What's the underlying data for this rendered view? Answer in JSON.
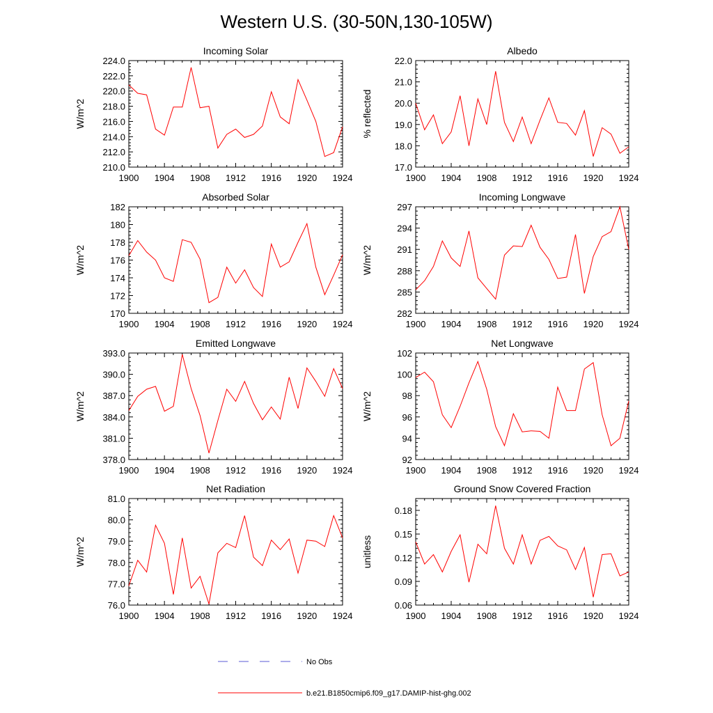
{
  "title": "Western U.S. (30-50N,130-105W)",
  "legend": [
    {
      "label": "No Obs",
      "color": "#5a5ad6",
      "dash": true
    },
    {
      "label": "b.e21.B1850cmip6.f09_g17.DAMIP-hist-ghg.002",
      "color": "#ff0000",
      "dash": false
    }
  ],
  "chart_data": [
    {
      "type": "line",
      "title": "Incoming Solar",
      "ylabel": "W/m^2",
      "xlim": [
        1900,
        1924
      ],
      "ylim": [
        210,
        224
      ],
      "yticks": [
        210,
        212,
        214,
        216,
        218,
        220,
        222,
        224
      ],
      "ytick_labels": [
        "210.0",
        "212.0",
        "214.0",
        "216.0",
        "218.0",
        "220.0",
        "222.0",
        "224.0"
      ],
      "xticks": [
        1900,
        1904,
        1908,
        1912,
        1916,
        1920,
        1924
      ],
      "xtick_labels": [
        "1900",
        "1904",
        "1908",
        "1912",
        "1916",
        "1920",
        "1924"
      ],
      "series": [
        {
          "color": "#ff0000",
          "x": [
            1900,
            1901,
            1902,
            1903,
            1904,
            1905,
            1906,
            1907,
            1908,
            1909,
            1910,
            1911,
            1912,
            1913,
            1914,
            1915,
            1916,
            1917,
            1918,
            1919,
            1920,
            1921,
            1922,
            1923,
            1924
          ],
          "y": [
            220.8,
            219.7,
            219.5,
            215.0,
            214.2,
            217.9,
            217.9,
            223.1,
            217.8,
            218.0,
            212.5,
            214.3,
            215.0,
            213.9,
            214.3,
            215.4,
            219.9,
            216.6,
            215.7,
            221.5,
            218.8,
            216.0,
            211.4,
            211.9,
            215.3
          ]
        }
      ]
    },
    {
      "type": "line",
      "title": "Albedo",
      "ylabel": "% reflected",
      "xlim": [
        1900,
        1924
      ],
      "ylim": [
        17,
        22
      ],
      "yticks": [
        17,
        18,
        19,
        20,
        21,
        22
      ],
      "ytick_labels": [
        "17.0",
        "18.0",
        "19.0",
        "20.0",
        "21.0",
        "22.0"
      ],
      "xticks": [
        1900,
        1904,
        1908,
        1912,
        1916,
        1920,
        1924
      ],
      "xtick_labels": [
        "1900",
        "1904",
        "1908",
        "1912",
        "1916",
        "1920",
        "1924"
      ],
      "series": [
        {
          "color": "#ff0000",
          "x": [
            1900,
            1901,
            1902,
            1903,
            1904,
            1905,
            1906,
            1907,
            1908,
            1909,
            1910,
            1911,
            1912,
            1913,
            1914,
            1915,
            1916,
            1917,
            1918,
            1919,
            1920,
            1921,
            1922,
            1923,
            1924
          ],
          "y": [
            20.0,
            18.75,
            19.45,
            18.1,
            18.65,
            20.35,
            18.0,
            20.2,
            19.0,
            21.5,
            19.1,
            18.2,
            19.35,
            18.1,
            19.2,
            20.25,
            19.1,
            19.05,
            18.5,
            19.65,
            17.5,
            18.85,
            18.55,
            17.65,
            17.95
          ]
        }
      ]
    },
    {
      "type": "line",
      "title": "Absorbed Solar",
      "ylabel": "W/m^2",
      "xlim": [
        1900,
        1924
      ],
      "ylim": [
        170,
        182
      ],
      "yticks": [
        170,
        172,
        174,
        176,
        178,
        180,
        182
      ],
      "ytick_labels": [
        "170",
        "172",
        "174",
        "176",
        "178",
        "180",
        "182"
      ],
      "xticks": [
        1900,
        1904,
        1908,
        1912,
        1916,
        1920,
        1924
      ],
      "xtick_labels": [
        "1900",
        "1904",
        "1908",
        "1912",
        "1916",
        "1920",
        "1924"
      ],
      "series": [
        {
          "color": "#ff0000",
          "x": [
            1900,
            1901,
            1902,
            1903,
            1904,
            1905,
            1906,
            1907,
            1908,
            1909,
            1910,
            1911,
            1912,
            1913,
            1914,
            1915,
            1916,
            1917,
            1918,
            1919,
            1920,
            1921,
            1922,
            1923,
            1924
          ],
          "y": [
            176.5,
            178.2,
            176.9,
            176.0,
            174.0,
            173.6,
            178.3,
            178.0,
            176.1,
            171.2,
            171.8,
            175.2,
            173.4,
            174.9,
            172.9,
            171.9,
            177.8,
            175.2,
            175.8,
            178.0,
            180.1,
            175.2,
            172.1,
            174.3,
            176.6
          ]
        }
      ]
    },
    {
      "type": "line",
      "title": "Incoming Longwave",
      "ylabel": "W/m^2",
      "xlim": [
        1900,
        1924
      ],
      "ylim": [
        282,
        297
      ],
      "yticks": [
        282,
        285,
        288,
        291,
        294,
        297
      ],
      "ytick_labels": [
        "282",
        "285",
        "288",
        "291",
        "294",
        "297"
      ],
      "xticks": [
        1900,
        1904,
        1908,
        1912,
        1916,
        1920,
        1924
      ],
      "xtick_labels": [
        "1900",
        "1904",
        "1908",
        "1912",
        "1916",
        "1920",
        "1924"
      ],
      "series": [
        {
          "color": "#ff0000",
          "x": [
            1900,
            1901,
            1902,
            1903,
            1904,
            1905,
            1906,
            1907,
            1908,
            1909,
            1910,
            1911,
            1912,
            1913,
            1914,
            1915,
            1916,
            1917,
            1918,
            1919,
            1920,
            1921,
            1922,
            1923,
            1924
          ],
          "y": [
            285.3,
            286.6,
            288.6,
            292.2,
            289.8,
            288.6,
            293.6,
            287.0,
            285.5,
            284.0,
            290.2,
            291.5,
            291.4,
            294.4,
            291.3,
            289.6,
            286.9,
            287.1,
            293.1,
            284.8,
            290.0,
            292.8,
            293.5,
            297.0,
            291.0
          ]
        }
      ]
    },
    {
      "type": "line",
      "title": "Emitted Longwave",
      "ylabel": "W/m^2",
      "xlim": [
        1900,
        1924
      ],
      "ylim": [
        378,
        393
      ],
      "yticks": [
        378,
        381,
        384,
        387,
        390,
        393
      ],
      "ytick_labels": [
        "378.0",
        "381.0",
        "384.0",
        "387.0",
        "390.0",
        "393.0"
      ],
      "xticks": [
        1900,
        1904,
        1908,
        1912,
        1916,
        1920,
        1924
      ],
      "xtick_labels": [
        "1900",
        "1904",
        "1908",
        "1912",
        "1916",
        "1920",
        "1924"
      ],
      "series": [
        {
          "color": "#ff0000",
          "x": [
            1900,
            1901,
            1902,
            1903,
            1904,
            1905,
            1906,
            1907,
            1908,
            1909,
            1910,
            1911,
            1912,
            1913,
            1914,
            1915,
            1916,
            1917,
            1918,
            1919,
            1920,
            1921,
            1922,
            1923,
            1924
          ],
          "y": [
            384.9,
            386.9,
            387.9,
            388.3,
            384.8,
            385.5,
            392.8,
            388.0,
            384.2,
            378.9,
            383.5,
            387.9,
            386.2,
            389.0,
            385.9,
            383.6,
            385.4,
            383.7,
            389.6,
            385.2,
            390.9,
            389.0,
            386.9,
            390.8,
            388.0
          ]
        }
      ]
    },
    {
      "type": "line",
      "title": "Net Longwave",
      "ylabel": "W/m^2",
      "xlim": [
        1900,
        1924
      ],
      "ylim": [
        92,
        102
      ],
      "yticks": [
        92,
        94,
        96,
        98,
        100,
        102
      ],
      "ytick_labels": [
        "92",
        "94",
        "96",
        "98",
        "100",
        "102"
      ],
      "xticks": [
        1900,
        1904,
        1908,
        1912,
        1916,
        1920,
        1924
      ],
      "xtick_labels": [
        "1900",
        "1904",
        "1908",
        "1912",
        "1916",
        "1920",
        "1924"
      ],
      "series": [
        {
          "color": "#ff0000",
          "x": [
            1900,
            1901,
            1902,
            1903,
            1904,
            1905,
            1906,
            1907,
            1908,
            1909,
            1910,
            1911,
            1912,
            1913,
            1914,
            1915,
            1916,
            1917,
            1918,
            1919,
            1920,
            1921,
            1922,
            1923,
            1924
          ],
          "y": [
            99.7,
            100.2,
            99.3,
            96.2,
            95.0,
            97.0,
            99.2,
            101.2,
            98.6,
            95.1,
            93.3,
            96.3,
            94.6,
            94.7,
            94.65,
            94.0,
            98.8,
            96.6,
            96.6,
            100.5,
            101.1,
            96.2,
            93.3,
            94.0,
            97.5
          ]
        }
      ]
    },
    {
      "type": "line",
      "title": "Net Radiation",
      "ylabel": "W/m^2",
      "xlim": [
        1900,
        1924
      ],
      "ylim": [
        76,
        81
      ],
      "yticks": [
        76,
        77,
        78,
        79,
        80,
        81
      ],
      "ytick_labels": [
        "76.0",
        "77.0",
        "78.0",
        "79.0",
        "80.0",
        "81.0"
      ],
      "xticks": [
        1900,
        1904,
        1908,
        1912,
        1916,
        1920,
        1924
      ],
      "xtick_labels": [
        "1900",
        "1904",
        "1908",
        "1912",
        "1916",
        "1920",
        "1924"
      ],
      "series": [
        {
          "color": "#ff0000",
          "x": [
            1900,
            1901,
            1902,
            1903,
            1904,
            1905,
            1906,
            1907,
            1908,
            1909,
            1910,
            1911,
            1912,
            1913,
            1914,
            1915,
            1916,
            1917,
            1918,
            1919,
            1920,
            1921,
            1922,
            1923,
            1924
          ],
          "y": [
            76.9,
            78.1,
            77.55,
            79.75,
            78.9,
            76.5,
            79.15,
            76.8,
            77.35,
            76.05,
            78.45,
            78.9,
            78.7,
            80.2,
            78.25,
            77.85,
            79.05,
            78.6,
            79.1,
            77.5,
            79.05,
            79.0,
            78.75,
            80.2,
            79.15
          ]
        }
      ]
    },
    {
      "type": "line",
      "title": "Ground Snow Covered Fraction",
      "ylabel": "unitless",
      "xlim": [
        1900,
        1924
      ],
      "ylim": [
        0.06,
        0.195
      ],
      "yticks": [
        0.06,
        0.09,
        0.12,
        0.15,
        0.18
      ],
      "ytick_labels": [
        "0.06",
        "0.09",
        "0.12",
        "0.15",
        "0.18"
      ],
      "xticks": [
        1900,
        1904,
        1908,
        1912,
        1916,
        1920,
        1924
      ],
      "xtick_labels": [
        "1900",
        "1904",
        "1908",
        "1912",
        "1916",
        "1920",
        "1924"
      ],
      "series": [
        {
          "color": "#ff0000",
          "x": [
            1900,
            1901,
            1902,
            1903,
            1904,
            1905,
            1906,
            1907,
            1908,
            1909,
            1910,
            1911,
            1912,
            1913,
            1914,
            1915,
            1916,
            1917,
            1918,
            1919,
            1920,
            1921,
            1922,
            1923,
            1924
          ],
          "y": [
            0.14,
            0.112,
            0.124,
            0.102,
            0.128,
            0.149,
            0.089,
            0.137,
            0.125,
            0.186,
            0.132,
            0.112,
            0.149,
            0.112,
            0.142,
            0.147,
            0.135,
            0.13,
            0.105,
            0.133,
            0.07,
            0.124,
            0.125,
            0.097,
            0.102
          ]
        }
      ]
    }
  ]
}
